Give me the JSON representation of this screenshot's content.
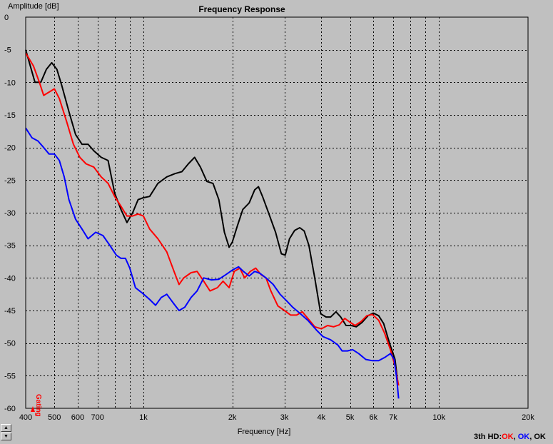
{
  "chart_data": {
    "type": "line",
    "title": "Frequency Response",
    "xlabel": "Frequency [Hz]",
    "ylabel": "Amplitude [dB]",
    "x_scale": "log",
    "xlim": [
      400,
      20000
    ],
    "ylim": [
      -60,
      0
    ],
    "grid": true,
    "x_ticks": [
      {
        "value": 400,
        "label": "400"
      },
      {
        "value": 500,
        "label": "500"
      },
      {
        "value": 600,
        "label": "600"
      },
      {
        "value": 700,
        "label": "700"
      },
      {
        "value": 1000,
        "label": "1k"
      },
      {
        "value": 2000,
        "label": "2k"
      },
      {
        "value": 3000,
        "label": "3k"
      },
      {
        "value": 4000,
        "label": "4k"
      },
      {
        "value": 5000,
        "label": "5k"
      },
      {
        "value": 6000,
        "label": "6k"
      },
      {
        "value": 7000,
        "label": "7k"
      },
      {
        "value": 10000,
        "label": "10k"
      },
      {
        "value": 20000,
        "label": "20k"
      }
    ],
    "x_minor_grid": [
      800,
      900,
      8000,
      9000
    ],
    "y_ticks": [
      0,
      -5,
      -10,
      -15,
      -20,
      -25,
      -30,
      -35,
      -40,
      -45,
      -50,
      -55,
      -60
    ],
    "annotation": "Gating",
    "series": [
      {
        "color": "#000000",
        "points": [
          [
            400,
            -5
          ],
          [
            430,
            -10
          ],
          [
            450,
            -10
          ],
          [
            470,
            -8
          ],
          [
            490,
            -7
          ],
          [
            510,
            -8
          ],
          [
            530,
            -10.5
          ],
          [
            560,
            -14.5
          ],
          [
            590,
            -18
          ],
          [
            620,
            -19.5
          ],
          [
            650,
            -19.5
          ],
          [
            680,
            -20.5
          ],
          [
            720,
            -21.5
          ],
          [
            760,
            -22
          ],
          [
            800,
            -27
          ],
          [
            840,
            -29.5
          ],
          [
            880,
            -31.5
          ],
          [
            920,
            -30
          ],
          [
            960,
            -28
          ],
          [
            1000,
            -27.7
          ],
          [
            1050,
            -27.5
          ],
          [
            1120,
            -25.5
          ],
          [
            1200,
            -24.5
          ],
          [
            1280,
            -24
          ],
          [
            1350,
            -23.7
          ],
          [
            1420,
            -22.5
          ],
          [
            1490,
            -21.5
          ],
          [
            1560,
            -23
          ],
          [
            1640,
            -25.2
          ],
          [
            1720,
            -25.5
          ],
          [
            1800,
            -28
          ],
          [
            1880,
            -33
          ],
          [
            1950,
            -35.3
          ],
          [
            2000,
            -34.5
          ],
          [
            2080,
            -32
          ],
          [
            2170,
            -29.5
          ],
          [
            2280,
            -28.5
          ],
          [
            2380,
            -26.5
          ],
          [
            2450,
            -26
          ],
          [
            2530,
            -27.5
          ],
          [
            2650,
            -30
          ],
          [
            2800,
            -33
          ],
          [
            2930,
            -36.3
          ],
          [
            3020,
            -36.5
          ],
          [
            3120,
            -34
          ],
          [
            3250,
            -32.7
          ],
          [
            3380,
            -32.3
          ],
          [
            3500,
            -32.8
          ],
          [
            3630,
            -35
          ],
          [
            3800,
            -40
          ],
          [
            3980,
            -45.5
          ],
          [
            4150,
            -46
          ],
          [
            4300,
            -46
          ],
          [
            4480,
            -45.2
          ],
          [
            4650,
            -46
          ],
          [
            4850,
            -47.3
          ],
          [
            5050,
            -47.3
          ],
          [
            5250,
            -47.5
          ],
          [
            5500,
            -46.8
          ],
          [
            5750,
            -45.8
          ],
          [
            6000,
            -45.4
          ],
          [
            6250,
            -45.8
          ],
          [
            6500,
            -47
          ],
          [
            6800,
            -50
          ],
          [
            7100,
            -52.5
          ],
          [
            7250,
            -56
          ]
        ]
      },
      {
        "color": "#ff0000",
        "points": [
          [
            400,
            -5.5
          ],
          [
            425,
            -7.5
          ],
          [
            445,
            -10
          ],
          [
            460,
            -12
          ],
          [
            480,
            -11.5
          ],
          [
            500,
            -11
          ],
          [
            520,
            -12.5
          ],
          [
            550,
            -16
          ],
          [
            580,
            -19.5
          ],
          [
            610,
            -21.5
          ],
          [
            640,
            -22.5
          ],
          [
            680,
            -23
          ],
          [
            720,
            -24.5
          ],
          [
            760,
            -25.5
          ],
          [
            800,
            -27.5
          ],
          [
            840,
            -29
          ],
          [
            880,
            -30.5
          ],
          [
            920,
            -30.5
          ],
          [
            960,
            -30.2
          ],
          [
            1000,
            -30.5
          ],
          [
            1050,
            -32.5
          ],
          [
            1120,
            -34
          ],
          [
            1200,
            -36
          ],
          [
            1270,
            -39
          ],
          [
            1320,
            -41
          ],
          [
            1370,
            -40
          ],
          [
            1450,
            -39.2
          ],
          [
            1520,
            -39
          ],
          [
            1600,
            -40.5
          ],
          [
            1680,
            -42
          ],
          [
            1780,
            -41.5
          ],
          [
            1860,
            -40.5
          ],
          [
            1950,
            -41.5
          ],
          [
            2030,
            -39
          ],
          [
            2120,
            -38.5
          ],
          [
            2200,
            -40
          ],
          [
            2300,
            -39
          ],
          [
            2400,
            -38.5
          ],
          [
            2500,
            -39.5
          ],
          [
            2600,
            -40
          ],
          [
            2700,
            -42
          ],
          [
            2850,
            -44.3
          ],
          [
            3000,
            -45
          ],
          [
            3150,
            -45.7
          ],
          [
            3300,
            -45.7
          ],
          [
            3450,
            -45.2
          ],
          [
            3600,
            -46.2
          ],
          [
            3800,
            -47.5
          ],
          [
            4000,
            -47.8
          ],
          [
            4200,
            -47.3
          ],
          [
            4400,
            -47.5
          ],
          [
            4600,
            -47.2
          ],
          [
            4800,
            -46.2
          ],
          [
            5000,
            -46.8
          ],
          [
            5200,
            -47.3
          ],
          [
            5450,
            -46.7
          ],
          [
            5700,
            -45.8
          ],
          [
            5950,
            -45.6
          ],
          [
            6250,
            -46.5
          ],
          [
            6550,
            -48.5
          ],
          [
            6850,
            -51
          ],
          [
            7100,
            -53.5
          ],
          [
            7300,
            -56.5
          ]
        ]
      },
      {
        "color": "#0000ff",
        "points": [
          [
            400,
            -17
          ],
          [
            420,
            -18.5
          ],
          [
            440,
            -19
          ],
          [
            460,
            -20
          ],
          [
            480,
            -21
          ],
          [
            500,
            -21
          ],
          [
            520,
            -22
          ],
          [
            540,
            -24.5
          ],
          [
            560,
            -28
          ],
          [
            590,
            -31
          ],
          [
            620,
            -32.5
          ],
          [
            650,
            -34
          ],
          [
            690,
            -33
          ],
          [
            730,
            -33.5
          ],
          [
            770,
            -35
          ],
          [
            810,
            -36.5
          ],
          [
            840,
            -37
          ],
          [
            870,
            -37
          ],
          [
            900,
            -38.5
          ],
          [
            940,
            -41.5
          ],
          [
            990,
            -42.3
          ],
          [
            1050,
            -43.3
          ],
          [
            1100,
            -44.2
          ],
          [
            1150,
            -43
          ],
          [
            1200,
            -42.5
          ],
          [
            1270,
            -44
          ],
          [
            1320,
            -45
          ],
          [
            1380,
            -44.5
          ],
          [
            1450,
            -43
          ],
          [
            1520,
            -42
          ],
          [
            1600,
            -40
          ],
          [
            1700,
            -40.3
          ],
          [
            1800,
            -40.2
          ],
          [
            1900,
            -39.5
          ],
          [
            2000,
            -38.8
          ],
          [
            2100,
            -38.3
          ],
          [
            2180,
            -39
          ],
          [
            2280,
            -39.7
          ],
          [
            2380,
            -39
          ],
          [
            2480,
            -39.3
          ],
          [
            2600,
            -40
          ],
          [
            2750,
            -41
          ],
          [
            2900,
            -42.5
          ],
          [
            3050,
            -43.5
          ],
          [
            3200,
            -44.5
          ],
          [
            3400,
            -45.5
          ],
          [
            3600,
            -46.5
          ],
          [
            3850,
            -48
          ],
          [
            4050,
            -49
          ],
          [
            4300,
            -49.5
          ],
          [
            4550,
            -50.3
          ],
          [
            4700,
            -51.2
          ],
          [
            4900,
            -51.2
          ],
          [
            5100,
            -51
          ],
          [
            5350,
            -51.6
          ],
          [
            5650,
            -52.5
          ],
          [
            5950,
            -52.7
          ],
          [
            6250,
            -52.7
          ],
          [
            6550,
            -52.2
          ],
          [
            6850,
            -51.6
          ],
          [
            7050,
            -52.5
          ],
          [
            7200,
            -55.5
          ],
          [
            7300,
            -58.5
          ]
        ]
      }
    ]
  },
  "status": {
    "prefix": "3th HD:",
    "items": [
      {
        "text": "OK",
        "color": "#ff0000",
        "sep": ", "
      },
      {
        "text": "OK",
        "color": "#0000ff",
        "sep": ", "
      },
      {
        "text": "OK",
        "color": "#000000",
        "sep": ""
      }
    ]
  }
}
